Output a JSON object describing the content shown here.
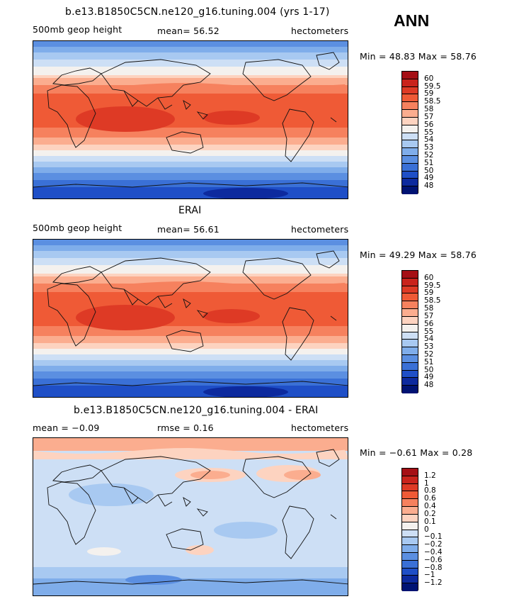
{
  "overall_label": "ANN",
  "panels": [
    {
      "title": "b.e13.B1850C5CN.ne120_g16.tuning.004 (yrs 1-17)",
      "left_label": "500mb geop height",
      "mid_label": "mean=  56.52",
      "units": "hectometers",
      "minmax": "Min =  48.83 Max =  58.76",
      "levels": [
        "60",
        "59.5",
        "59",
        "58.5",
        "58",
        "57",
        "56",
        "55",
        "54",
        "53",
        "52",
        "51",
        "50",
        "49",
        "48"
      ],
      "colors": [
        "#a50f15",
        "#c9231c",
        "#de3a25",
        "#ef5a36",
        "#f6815e",
        "#fbad8f",
        "#fdd3c0",
        "#f4f1ee",
        "#cddff5",
        "#a8c9f1",
        "#7fadea",
        "#5b8fe1",
        "#3a70d6",
        "#1f4fc7",
        "#0d2a9e",
        "#001373"
      ]
    },
    {
      "title": "ERAI",
      "left_label": "500mb geop height",
      "mid_label": "mean=  56.61",
      "units": "hectometers",
      "minmax": "Min =  49.29 Max =  58.76",
      "levels": [
        "60",
        "59.5",
        "59",
        "58.5",
        "58",
        "57",
        "56",
        "55",
        "54",
        "53",
        "52",
        "51",
        "50",
        "49",
        "48"
      ],
      "colors": [
        "#a50f15",
        "#c9231c",
        "#de3a25",
        "#ef5a36",
        "#f6815e",
        "#fbad8f",
        "#fdd3c0",
        "#f4f1ee",
        "#cddff5",
        "#a8c9f1",
        "#7fadea",
        "#5b8fe1",
        "#3a70d6",
        "#1f4fc7",
        "#0d2a9e",
        "#001373"
      ]
    },
    {
      "title": "b.e13.B1850C5CN.ne120_g16.tuning.004 - ERAI",
      "left_label": "mean =  −0.09",
      "mid_label": "rmse =    0.16",
      "units": "hectometers",
      "minmax": "Min =  −0.61 Max =   0.28",
      "levels": [
        "1.2",
        "1",
        "0.8",
        "0.6",
        "0.4",
        "0.2",
        "0.1",
        "0",
        "−0.1",
        "−0.2",
        "−0.4",
        "−0.6",
        "−0.8",
        "−1",
        "−1.2"
      ],
      "colors": [
        "#a50f15",
        "#c9231c",
        "#de3a25",
        "#ef5a36",
        "#f6815e",
        "#fbad8f",
        "#fdd3c0",
        "#f4f1ee",
        "#cddff5",
        "#a8c9f1",
        "#7fadea",
        "#5b8fe1",
        "#3a70d6",
        "#1f4fc7",
        "#0d2a9e",
        "#001373"
      ]
    }
  ]
}
